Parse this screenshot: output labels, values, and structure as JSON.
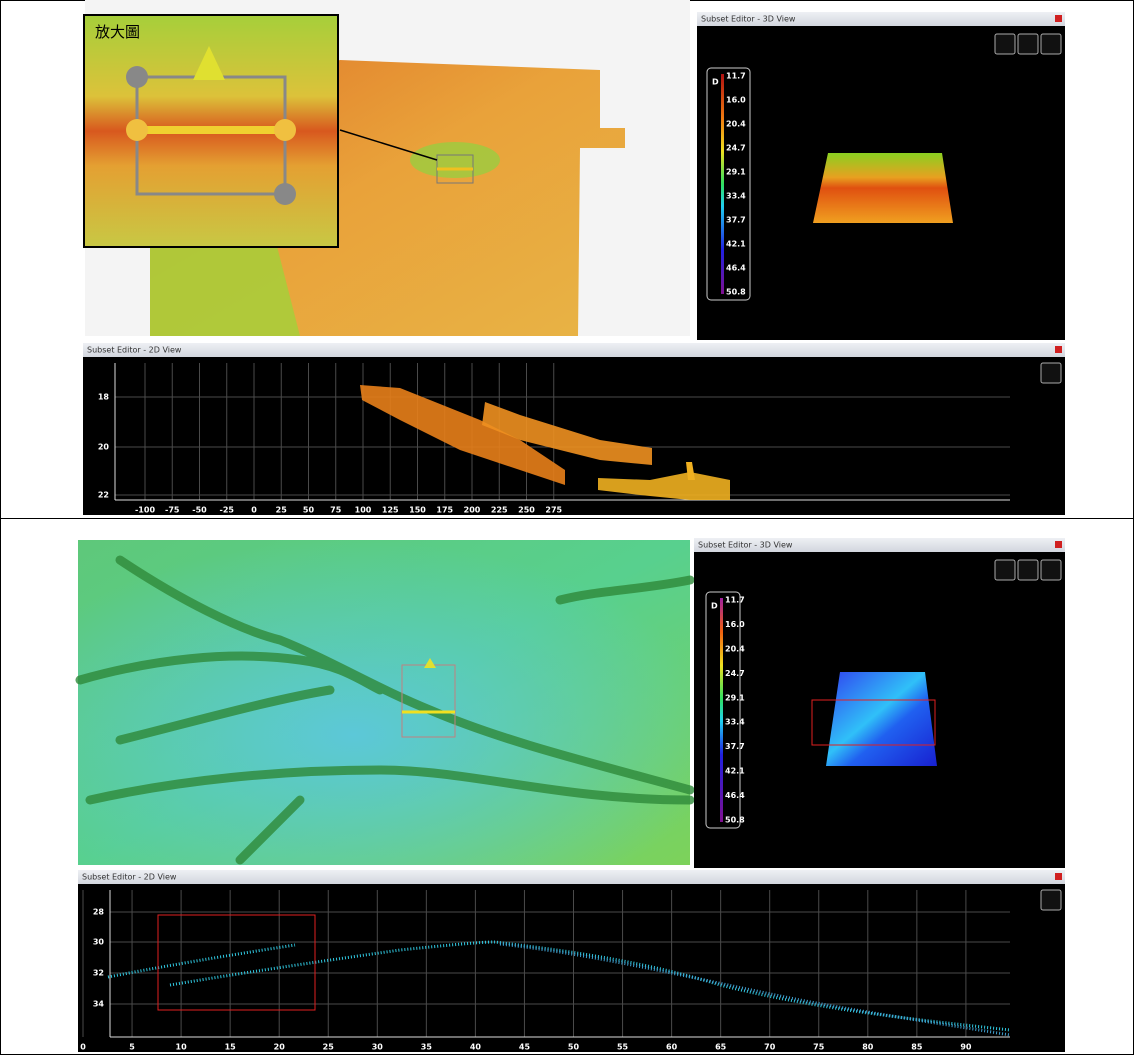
{
  "panels": [
    {
      "inset_label": "放大圖",
      "view3d": {
        "title": "Subset Editor - 3D View",
        "colorbar_axis": "D",
        "colorbar_labels": [
          "11.7",
          "16.0",
          "20.4",
          "24.7",
          "29.1",
          "33.4",
          "37.7",
          "42.1",
          "46.4",
          "50.8"
        ]
      },
      "view2d": {
        "title": "Subset Editor - 2D View",
        "yticks": [
          "18",
          "20",
          "22"
        ],
        "xticks": [
          "-100",
          "-75",
          "-50",
          "-25",
          "0",
          "25",
          "50",
          "75",
          "100",
          "125",
          "150",
          "175",
          "200",
          "225",
          "250",
          "275"
        ]
      }
    },
    {
      "view3d": {
        "title": "Subset Editor - 3D View",
        "colorbar_axis": "D",
        "colorbar_labels": [
          "11.7",
          "16.0",
          "20.4",
          "24.7",
          "29.1",
          "33.4",
          "37.7",
          "42.1",
          "46.4",
          "50.8"
        ]
      },
      "view2d": {
        "title": "Subset Editor - 2D View",
        "yticks": [
          "28",
          "30",
          "32",
          "34"
        ],
        "xticks": [
          "0",
          "5",
          "10",
          "15",
          "20",
          "25",
          "30",
          "35",
          "40",
          "45",
          "50",
          "55",
          "60",
          "65",
          "70",
          "75",
          "80",
          "85",
          "90"
        ]
      }
    }
  ]
}
